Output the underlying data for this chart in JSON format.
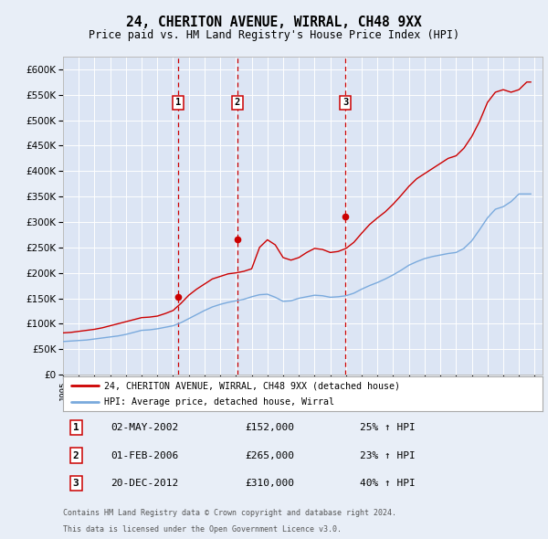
{
  "title": "24, CHERITON AVENUE, WIRRAL, CH48 9XX",
  "subtitle": "Price paid vs. HM Land Registry's House Price Index (HPI)",
  "background_color": "#e8eef7",
  "plot_bg_color": "#dce5f4",
  "red_line_color": "#cc0000",
  "blue_line_color": "#7aaadd",
  "grid_color": "#ffffff",
  "vline_color": "#cc0000",
  "sale_markers": [
    {
      "label": "1",
      "x": 2002.333,
      "price": 152000,
      "date_str": "02-MAY-2002",
      "pct": "25% ↑ HPI"
    },
    {
      "label": "2",
      "x": 2006.083,
      "price": 265000,
      "date_str": "01-FEB-2006",
      "pct": "23% ↑ HPI"
    },
    {
      "label": "3",
      "x": 2012.958,
      "price": 310000,
      "date_str": "20-DEC-2012",
      "pct": "40% ↑ HPI"
    }
  ],
  "legend_entries": [
    "24, CHERITON AVENUE, WIRRAL, CH48 9XX (detached house)",
    "HPI: Average price, detached house, Wirral"
  ],
  "footnote1": "Contains HM Land Registry data © Crown copyright and database right 2024.",
  "footnote2": "This data is licensed under the Open Government Licence v3.0.",
  "ylim": [
    0,
    625000
  ],
  "yticks": [
    0,
    50000,
    100000,
    150000,
    200000,
    250000,
    300000,
    350000,
    400000,
    450000,
    500000,
    550000,
    600000
  ],
  "xlim_start": 1995,
  "xlim_end": 2025.5,
  "hpi_years": [
    1995.0,
    1995.25,
    1995.5,
    1995.75,
    1996.0,
    1996.25,
    1996.5,
    1996.75,
    1997.0,
    1997.25,
    1997.5,
    1997.75,
    1998.0,
    1998.25,
    1998.5,
    1998.75,
    1999.0,
    1999.25,
    1999.5,
    1999.75,
    2000.0,
    2000.25,
    2000.5,
    2000.75,
    2001.0,
    2001.25,
    2001.5,
    2001.75,
    2002.0,
    2002.25,
    2002.5,
    2002.75,
    2003.0,
    2003.25,
    2003.5,
    2003.75,
    2004.0,
    2004.25,
    2004.5,
    2004.75,
    2005.0,
    2005.25,
    2005.5,
    2005.75,
    2006.0,
    2006.25,
    2006.5,
    2006.75,
    2007.0,
    2007.25,
    2007.5,
    2007.75,
    2008.0,
    2008.25,
    2008.5,
    2008.75,
    2009.0,
    2009.25,
    2009.5,
    2009.75,
    2010.0,
    2010.25,
    2010.5,
    2010.75,
    2011.0,
    2011.25,
    2011.5,
    2011.75,
    2012.0,
    2012.25,
    2012.5,
    2012.75,
    2013.0,
    2013.25,
    2013.5,
    2013.75,
    2014.0,
    2014.25,
    2014.5,
    2014.75,
    2015.0,
    2015.25,
    2015.5,
    2015.75,
    2016.0,
    2016.25,
    2016.5,
    2016.75,
    2017.0,
    2017.25,
    2017.5,
    2017.75,
    2018.0,
    2018.25,
    2018.5,
    2018.75,
    2019.0,
    2019.25,
    2019.5,
    2019.75,
    2020.0,
    2020.25,
    2020.5,
    2020.75,
    2021.0,
    2021.25,
    2021.5,
    2021.75,
    2022.0,
    2022.25,
    2022.5,
    2022.75,
    2023.0,
    2023.25,
    2023.5,
    2023.75,
    2024.0,
    2024.25,
    2024.5,
    2024.75
  ],
  "hpi_values": [
    65000,
    65500,
    66000,
    66500,
    67000,
    67500,
    68000,
    69000,
    70000,
    71000,
    72000,
    73000,
    74000,
    75000,
    76000,
    77500,
    79000,
    81000,
    83000,
    85000,
    87000,
    87500,
    88000,
    89000,
    90000,
    91500,
    93000,
    94500,
    96000,
    99000,
    102000,
    106000,
    110000,
    114000,
    118000,
    122000,
    126000,
    129500,
    133000,
    135500,
    138000,
    140000,
    142000,
    143500,
    145000,
    146500,
    148000,
    150500,
    153000,
    155000,
    157000,
    157500,
    158000,
    155000,
    152000,
    148000,
    144000,
    144500,
    145000,
    147500,
    150000,
    151500,
    153000,
    154500,
    156000,
    155500,
    155000,
    153500,
    152000,
    152500,
    153000,
    154000,
    155000,
    157500,
    160000,
    164000,
    168000,
    171500,
    175000,
    178000,
    181000,
    184500,
    188000,
    192000,
    196000,
    200500,
    205000,
    210000,
    215000,
    218500,
    222000,
    225000,
    228000,
    230000,
    232000,
    233500,
    235000,
    236500,
    238000,
    239000,
    240000,
    244000,
    248000,
    255500,
    263000,
    274000,
    285000,
    296500,
    308000,
    316500,
    325000,
    327500,
    330000,
    335000,
    340000,
    347500,
    355000,
    355000,
    355000,
    355000
  ],
  "red_values": [
    82000,
    82500,
    83000,
    84000,
    85000,
    86000,
    87000,
    88000,
    89000,
    90500,
    92000,
    94000,
    96000,
    98000,
    100000,
    102000,
    104000,
    106000,
    108000,
    110000,
    112000,
    112500,
    113000,
    114000,
    115000,
    117500,
    120000,
    123000,
    126000,
    133000,
    140000,
    148000,
    156000,
    162000,
    168000,
    173000,
    178000,
    183000,
    188000,
    190500,
    193000,
    195500,
    198000,
    199000,
    200000,
    201500,
    203000,
    205500,
    208000,
    229000,
    250000,
    257500,
    265000,
    260000,
    255000,
    242500,
    230000,
    227500,
    225000,
    227500,
    230000,
    235000,
    240000,
    244000,
    248000,
    247000,
    246000,
    243000,
    240000,
    241000,
    242000,
    245000,
    248000,
    254000,
    260000,
    269000,
    278000,
    286500,
    295000,
    301500,
    308000,
    314000,
    320000,
    327500,
    335000,
    343500,
    352000,
    361000,
    370000,
    377500,
    385000,
    390000,
    395000,
    400000,
    405000,
    410000,
    415000,
    420000,
    425000,
    427500,
    430000,
    437500,
    445000,
    456500,
    468000,
    483000,
    498000,
    516500,
    535000,
    545000,
    555000,
    557500,
    560000,
    557500,
    555000,
    557500,
    560000,
    567500,
    575000,
    575000
  ]
}
